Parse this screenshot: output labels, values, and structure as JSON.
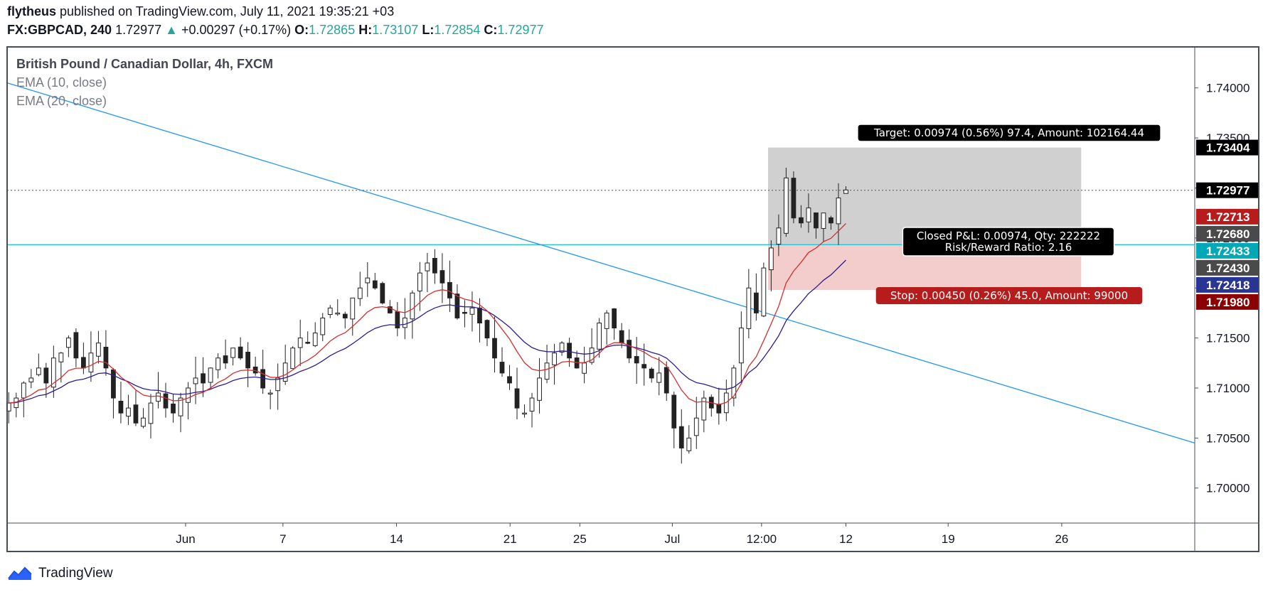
{
  "header": {
    "author": "flytheus",
    "published": "published on TradingView.com, July 11, 2021 19:35:21 +03",
    "symbol": "FX:GBPCAD, 240",
    "last": "1.72977",
    "change_arrow": "▲",
    "change": "+0.00297 (+0.17%)",
    "o_label": "O:",
    "o_val": "1.72865",
    "h_label": "H:",
    "h_val": "1.73107",
    "l_label": "L:",
    "l_val": "1.72854",
    "c_label": "C:",
    "c_val": "1.72977"
  },
  "legend": {
    "title": "British Pound / Canadian Dollar, 4h, FXCM",
    "ema10": "EMA (10, close)",
    "ema20": "EMA (20, close)"
  },
  "brand": {
    "name": "TradingView",
    "icon": "tradingview-logo-icon"
  },
  "colors": {
    "up": "#26a69a",
    "ema10": "#d32f2f",
    "ema20": "#311b92",
    "trendline": "#2196f3",
    "hline": "#26c6da",
    "target_zone": "#c8c8c8",
    "stop_zone": "#f2c6c6"
  },
  "chart_data": {
    "type": "candlestick",
    "symbol": "GBPCAD",
    "timeframe": "4h",
    "ylim": [
      1.6965,
      1.7441
    ],
    "y_ticks": [
      "1.74000",
      "1.73500",
      "1.73000",
      "1.72500",
      "1.72000",
      "1.71500",
      "1.71000",
      "1.70500",
      "1.70000"
    ],
    "x_ticks": [
      "Jun",
      "7",
      "14",
      "21",
      "25",
      "Jul",
      "12:00",
      "12",
      "19",
      "26"
    ],
    "x_tick_days": [
      0,
      6,
      13,
      20,
      24.3,
      30,
      35.5,
      40.7,
      47,
      54
    ],
    "x_range_days": [
      -11,
      62.2
    ],
    "approx_closes": [
      1.7085,
      1.709,
      1.7105,
      1.711,
      1.712,
      1.7105,
      1.713,
      1.7135,
      1.715,
      1.713,
      1.712,
      1.7135,
      1.7145,
      1.712,
      1.709,
      1.7075,
      1.708,
      1.7065,
      1.707,
      1.7085,
      1.7095,
      1.708,
      1.7075,
      1.709,
      1.71,
      1.711,
      1.7105,
      1.712,
      1.713,
      1.7125,
      1.714,
      1.713,
      1.712,
      1.7115,
      1.71,
      1.7095,
      1.711,
      1.7125,
      1.714,
      1.715,
      1.7145,
      1.7155,
      1.717,
      1.718,
      1.7175,
      1.717,
      1.719,
      1.72,
      1.721,
      1.72,
      1.7185,
      1.7175,
      1.716,
      1.717,
      1.7195,
      1.7215,
      1.7225,
      1.7215,
      1.7205,
      1.719,
      1.717,
      1.7175,
      1.718,
      1.7165,
      1.715,
      1.713,
      1.7115,
      1.7105,
      1.708,
      1.7075,
      1.709,
      1.711,
      1.7125,
      1.7135,
      1.7145,
      1.713,
      1.712,
      1.7125,
      1.714,
      1.7165,
      1.7175,
      1.716,
      1.7145,
      1.713,
      1.7125,
      1.712,
      1.711,
      1.7115,
      1.7095,
      1.706,
      1.704,
      1.705,
      1.707,
      1.709,
      1.708,
      1.7075,
      1.7095,
      1.712,
      1.716,
      1.72,
      1.7175,
      1.722,
      1.724,
      1.726,
      1.731,
      1.727,
      1.7265,
      1.728,
      1.726,
      1.7275,
      1.7265,
      1.729,
      1.7298
    ],
    "ema_lines": [
      "EMA 10",
      "EMA 20"
    ],
    "long_position": {
      "entry": 1.7243,
      "target": 1.73404,
      "stop": 1.7198,
      "target_label": "Target: 0.00974 (0.56%) 97.4, Amount: 102164.44",
      "stop_label": "Stop: 0.00450 (0.26%) 45.0, Amount: 99000",
      "pnl_label": "Closed P&L: 0.00974, Qty: 222222",
      "rr_label": "Risk/Reward Ratio: 2.16",
      "start_day": 35.9,
      "end_day": 55.2
    },
    "trendline": {
      "from": [
        -11,
        1.7405
      ],
      "to": [
        62.2,
        1.7045
      ]
    },
    "horizontal_level": 1.72433,
    "last_price_line": 1.72977,
    "price_labels": [
      {
        "text": "1.73404",
        "price": 1.73404,
        "bg": "#000000",
        "fg": "#ffffff"
      },
      {
        "text": "1.72977",
        "price": 1.72977,
        "bg": "#000000",
        "fg": "#ffffff"
      },
      {
        "text": "1.72713",
        "price": 1.72713,
        "bg": "#b71c1c",
        "fg": "#ffffff"
      },
      {
        "text": "1.72680",
        "price": 1.7268,
        "bg": "#4a4a4a",
        "fg": "#ffffff"
      },
      {
        "text": "1.72433",
        "price": 1.72433,
        "bg": "#00a9b5",
        "fg": "#ffffff"
      },
      {
        "text": "1.72430",
        "price": 1.7243,
        "bg": "#4a4a4a",
        "fg": "#ffffff"
      },
      {
        "text": "1.72418",
        "price": 1.72418,
        "bg": "#283593",
        "fg": "#ffffff"
      },
      {
        "text": "1.71980",
        "price": 1.7198,
        "bg": "#8b0000",
        "fg": "#ffffff"
      }
    ]
  }
}
